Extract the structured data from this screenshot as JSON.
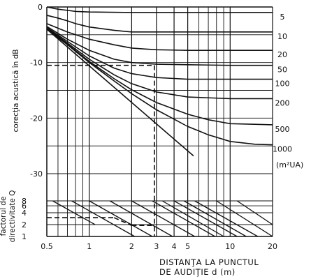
{
  "chart_data": {
    "type": "line",
    "ylabel": "corecţia acustică în dB",
    "xlabel_line1": "DISTANŢA LA PUNCTUL",
    "xlabel_line2": "DE AUDIŢIE  d (m)",
    "directivity_label_line1": "factorul de",
    "directivity_label_line2": "directivitate Q",
    "x_scale": "log",
    "xlim": [
      0.5,
      20
    ],
    "ylim": [
      -30,
      0
    ],
    "x_ticks": [
      "0.5",
      "1",
      "2",
      "3",
      "4",
      "5",
      "10",
      "20"
    ],
    "x_tick_values": [
      0.5,
      1,
      2,
      3,
      4,
      5,
      10,
      20
    ],
    "y_ticks": [
      "0",
      "-10",
      "-20",
      "-30"
    ],
    "y_tick_values": [
      0,
      -10,
      -20,
      -30
    ],
    "q_ticks": [
      "8",
      "6",
      "4",
      "2",
      "1"
    ],
    "q_tick_values": [
      8,
      6,
      4,
      2,
      1
    ],
    "curve_unit_label": "(m²UA)",
    "series": [
      {
        "name": "5",
        "x": [
          0.5,
          0.6,
          0.7,
          0.8,
          1,
          2,
          3,
          5,
          10,
          20
        ],
        "values": [
          0,
          -0.4,
          -0.6,
          -0.8,
          -0.9,
          -1,
          -1,
          -1,
          -1,
          -1
        ]
      },
      {
        "name": "10",
        "x": [
          0.5,
          0.6,
          0.7,
          0.8,
          1,
          1.5,
          2,
          3,
          5,
          10,
          20
        ],
        "values": [
          -1.5,
          -2,
          -2.5,
          -3,
          -3.6,
          -4.2,
          -4.5,
          -4.5,
          -4.5,
          -4.5,
          -4.5
        ]
      },
      {
        "name": "20",
        "x": [
          0.5,
          0.7,
          1,
          1.5,
          2,
          3,
          5,
          10,
          20
        ],
        "values": [
          -3,
          -4.5,
          -5.8,
          -6.8,
          -7.4,
          -7.7,
          -7.8,
          -7.8,
          -7.8
        ]
      },
      {
        "name": "50",
        "x": [
          0.5,
          0.7,
          1,
          1.5,
          2,
          3,
          5,
          10,
          20
        ],
        "values": [
          -3.5,
          -5.8,
          -7.8,
          -9.4,
          -10,
          -10.3,
          -10.4,
          -10.5,
          -10.5
        ]
      },
      {
        "name": "100",
        "x": [
          0.5,
          0.7,
          1,
          1.5,
          2,
          3,
          5,
          10,
          20
        ],
        "values": [
          -3.7,
          -6.2,
          -8.8,
          -11,
          -12,
          -12.7,
          -13,
          -13,
          -13
        ]
      },
      {
        "name": "200",
        "x": [
          0.5,
          0.7,
          1,
          1.5,
          2,
          3,
          5,
          10,
          20
        ],
        "values": [
          -3.8,
          -6.5,
          -9.4,
          -12.2,
          -13.8,
          -15.3,
          -16.2,
          -16.5,
          -16.5
        ]
      },
      {
        "name": "500",
        "x": [
          0.5,
          0.7,
          1,
          1.5,
          2,
          3,
          5,
          7,
          10,
          20
        ],
        "values": [
          -3.9,
          -6.7,
          -9.8,
          -12.9,
          -14.9,
          -17.2,
          -19.3,
          -20.3,
          -21,
          -21.2
        ]
      },
      {
        "name": "1000",
        "x": [
          0.5,
          0.7,
          1,
          1.5,
          2,
          3,
          5,
          7,
          10,
          15,
          20
        ],
        "values": [
          -4,
          -6.8,
          -10,
          -13.3,
          -15.6,
          -18.5,
          -21.5,
          -23,
          -24.2,
          -24.7,
          -24.8
        ]
      }
    ],
    "direct_sound_line": {
      "x": [
        0.5,
        5.5
      ],
      "values": [
        -4,
        -26.8
      ]
    },
    "example_path_db": {
      "x_start": 0.5,
      "y_db": -10.5,
      "x_end": 2.9,
      "y_bottom_q": 1
    },
    "example_path_q": {
      "x_start": 0.5,
      "q": 3
    },
    "directivity_lines": [
      {
        "q_start": 8,
        "x_start": 0.75,
        "q_end": 1,
        "x_end": 2.1
      },
      {
        "q_start": 8,
        "x_start": 1.0,
        "q_end": 1,
        "x_end": 2.8
      },
      {
        "q_start": 8,
        "x_start": 1.4,
        "q_end": 1,
        "x_end": 3.9
      },
      {
        "q_start": 8,
        "x_start": 2.0,
        "q_end": 1,
        "x_end": 5.6
      },
      {
        "q_start": 8,
        "x_start": 2.8,
        "q_end": 1,
        "x_end": 7.8
      },
      {
        "q_start": 8,
        "x_start": 4.0,
        "q_end": 1,
        "x_end": 11.2
      },
      {
        "q_start": 8,
        "x_start": 5.6,
        "q_end": 1,
        "x_end": 15.7
      },
      {
        "q_start": 8,
        "x_start": 8.0,
        "q_end": 1,
        "x_end": 20
      },
      {
        "q_start": 8,
        "x_start": 11.2,
        "q_end": 2,
        "x_end": 20
      },
      {
        "q_start": 8,
        "x_start": 0.55,
        "q_end": 2,
        "x_end": 1.1
      },
      {
        "q_start": 8,
        "x_start": 3.3,
        "q_end": 1,
        "x_end": 9.0
      },
      {
        "q_start": 8,
        "x_start": 4.7,
        "q_end": 1,
        "x_end": 13.0
      }
    ],
    "grid": true
  }
}
